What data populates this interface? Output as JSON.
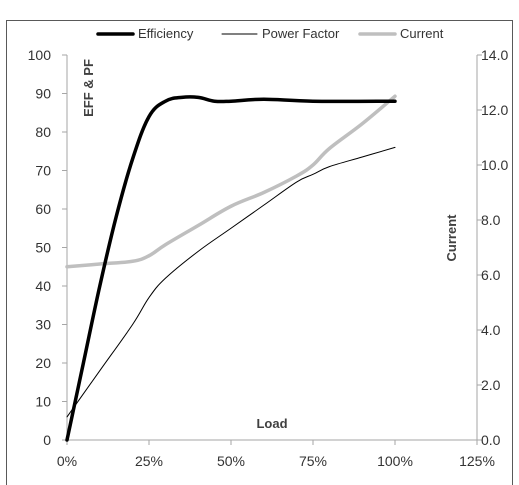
{
  "chart_data": {
    "type": "line",
    "title": "",
    "xlabel": "Load",
    "ylabel": "EFF & PF",
    "y2label": "Current",
    "x_ticks": [
      "0%",
      "25%",
      "50%",
      "75%",
      "100%",
      "125%"
    ],
    "y_ticks": [
      "0",
      "10",
      "20",
      "30",
      "40",
      "50",
      "60",
      "70",
      "80",
      "90",
      "100"
    ],
    "y2_ticks": [
      "0.0",
      "2.0",
      "4.0",
      "6.0",
      "8.0",
      "10.0",
      "12.0",
      "14.0"
    ],
    "xlim": [
      0,
      125
    ],
    "ylim": [
      0,
      100
    ],
    "y2lim": [
      0,
      14
    ],
    "grid": false,
    "legend_position": "top",
    "series": [
      {
        "name": "Efficiency",
        "axis": "left",
        "color": "#000000",
        "style": "thick",
        "x": [
          0,
          5,
          10,
          15,
          20,
          25,
          30,
          35,
          40,
          45,
          50,
          60,
          75,
          100
        ],
        "values": [
          0,
          20,
          40,
          58,
          73,
          84,
          88,
          89,
          89,
          88,
          88,
          88.5,
          88,
          88
        ]
      },
      {
        "name": "Power Factor",
        "axis": "left",
        "color": "#000000",
        "style": "thin",
        "x": [
          0,
          10,
          20,
          25,
          30,
          40,
          50,
          60,
          70,
          75,
          80,
          90,
          100
        ],
        "values": [
          6,
          18,
          30,
          37,
          42,
          49,
          55,
          61,
          67,
          69,
          71,
          73.5,
          76
        ]
      },
      {
        "name": "Current",
        "axis": "right",
        "color": "#bfbfbf",
        "style": "thick",
        "x": [
          0,
          10,
          20,
          25,
          30,
          40,
          50,
          60,
          70,
          75,
          80,
          90,
          100
        ],
        "values": [
          6.3,
          6.4,
          6.5,
          6.7,
          7.1,
          7.8,
          8.5,
          9.0,
          9.6,
          10.0,
          10.6,
          11.5,
          12.5
        ]
      }
    ]
  }
}
